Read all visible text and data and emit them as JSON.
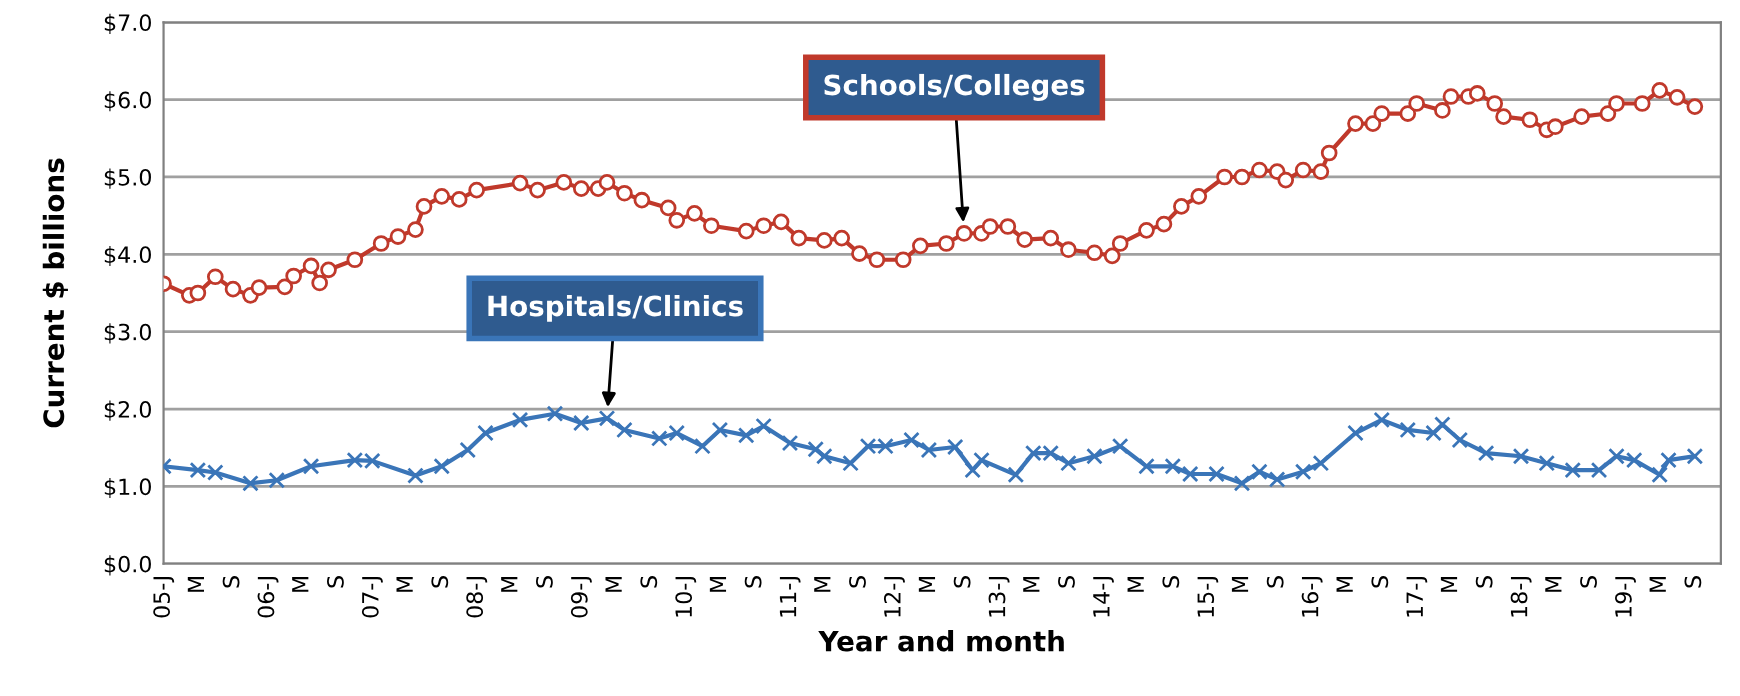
{
  "chart_data": {
    "type": "line",
    "xlabel": "Year and month",
    "ylabel": "Current $ billions",
    "series": [
      {
        "name": "Schools/Colleges",
        "color": "#c0392b",
        "marker": "circle",
        "x": [
          "2005-01",
          "2005-04",
          "2005-05",
          "2005-07",
          "2005-09",
          "2005-11",
          "2005-12",
          "2006-03",
          "2006-04",
          "2006-06",
          "2006-07",
          "2006-08",
          "2006-11",
          "2007-02",
          "2007-04",
          "2007-06",
          "2007-07",
          "2007-09",
          "2007-11",
          "2008-01",
          "2008-06",
          "2008-08",
          "2008-11",
          "2009-01",
          "2009-03",
          "2009-04",
          "2009-06",
          "2009-08",
          "2009-11",
          "2009-12",
          "2010-02",
          "2010-04",
          "2010-08",
          "2010-10",
          "2010-12",
          "2011-02",
          "2011-05",
          "2011-07",
          "2011-09",
          "2011-11",
          "2012-02",
          "2012-04",
          "2012-07",
          "2012-09",
          "2012-11",
          "2012-12",
          "2013-02",
          "2013-04",
          "2013-07",
          "2013-09",
          "2013-12",
          "2014-02",
          "2014-03",
          "2014-06",
          "2014-08",
          "2014-10",
          "2014-12",
          "2015-03",
          "2015-05",
          "2015-07",
          "2015-09",
          "2015-10",
          "2015-12",
          "2016-02",
          "2016-03",
          "2016-06",
          "2016-08",
          "2016-09",
          "2016-12",
          "2017-01",
          "2017-04",
          "2017-05",
          "2017-07",
          "2017-08",
          "2017-10",
          "2017-11",
          "2018-02",
          "2018-04",
          "2018-05",
          "2018-08",
          "2018-11",
          "2018-12",
          "2019-03",
          "2019-05",
          "2019-07",
          "2019-09"
        ],
        "values": [
          3.62,
          3.47,
          3.5,
          3.71,
          3.55,
          3.47,
          3.57,
          3.58,
          3.72,
          3.85,
          3.63,
          3.8,
          3.93,
          4.14,
          4.23,
          4.32,
          4.62,
          4.75,
          4.71,
          4.83,
          4.92,
          4.83,
          4.93,
          4.85,
          4.85,
          4.93,
          4.79,
          4.7,
          4.6,
          4.44,
          4.53,
          4.37,
          4.3,
          4.37,
          4.42,
          4.21,
          4.18,
          4.21,
          4.01,
          3.93,
          3.93,
          4.11,
          4.14,
          4.27,
          4.27,
          4.36,
          4.36,
          4.19,
          4.21,
          4.06,
          4.02,
          3.98,
          4.14,
          4.31,
          4.39,
          4.62,
          4.75,
          5.0,
          5.0,
          5.09,
          5.07,
          4.96,
          5.09,
          5.07,
          5.31,
          5.69,
          5.69,
          5.82,
          5.82,
          5.95,
          5.86,
          6.04,
          6.04,
          6.08,
          5.95,
          5.78,
          5.74,
          5.61,
          5.65,
          5.78,
          5.82,
          5.95,
          5.95,
          6.12,
          6.03,
          5.91
        ]
      },
      {
        "name": "Hospitals/Clinics",
        "color": "#3a75b8",
        "marker": "cross",
        "x": [
          "2005-01",
          "2005-05",
          "2005-07",
          "2005-11",
          "2006-02",
          "2006-06",
          "2006-11",
          "2007-01",
          "2007-06",
          "2007-09",
          "2007-12",
          "2008-02",
          "2008-06",
          "2008-10",
          "2009-01",
          "2009-04",
          "2009-06",
          "2009-10",
          "2009-12",
          "2010-03",
          "2010-05",
          "2010-08",
          "2010-10",
          "2011-01",
          "2011-04",
          "2011-05",
          "2011-08",
          "2011-10",
          "2011-12",
          "2012-03",
          "2012-05",
          "2012-08",
          "2012-10",
          "2012-11",
          "2013-03",
          "2013-05",
          "2013-07",
          "2013-09",
          "2013-12",
          "2014-03",
          "2014-06",
          "2014-09",
          "2014-11",
          "2015-02",
          "2015-05",
          "2015-07",
          "2015-09",
          "2015-12",
          "2016-02",
          "2016-06",
          "2016-09",
          "2016-12",
          "2017-03",
          "2017-04",
          "2017-06",
          "2017-09",
          "2018-01",
          "2018-04",
          "2018-07",
          "2018-10",
          "2018-12",
          "2019-02",
          "2019-05",
          "2019-06",
          "2019-09"
        ],
        "values": [
          1.26,
          1.21,
          1.18,
          1.04,
          1.08,
          1.26,
          1.34,
          1.33,
          1.14,
          1.26,
          1.47,
          1.69,
          1.86,
          1.94,
          1.82,
          1.88,
          1.73,
          1.62,
          1.69,
          1.52,
          1.73,
          1.66,
          1.78,
          1.56,
          1.48,
          1.39,
          1.3,
          1.52,
          1.52,
          1.6,
          1.47,
          1.51,
          1.21,
          1.34,
          1.15,
          1.43,
          1.43,
          1.3,
          1.39,
          1.52,
          1.26,
          1.26,
          1.16,
          1.16,
          1.04,
          1.19,
          1.09,
          1.19,
          1.3,
          1.69,
          1.86,
          1.73,
          1.69,
          1.8,
          1.6,
          1.43,
          1.39,
          1.3,
          1.21,
          1.21,
          1.39,
          1.34,
          1.15,
          1.34,
          1.39
        ]
      }
    ],
    "xlim": [
      "2005-01",
      "2019-12"
    ],
    "xticks": [
      {
        "value": "2005-01",
        "label": "05-J"
      },
      {
        "value": "2005-05",
        "label": "M"
      },
      {
        "value": "2005-09",
        "label": "S"
      },
      {
        "value": "2006-01",
        "label": "06-J"
      },
      {
        "value": "2006-05",
        "label": "M"
      },
      {
        "value": "2006-09",
        "label": "S"
      },
      {
        "value": "2007-01",
        "label": "07-J"
      },
      {
        "value": "2007-05",
        "label": "M"
      },
      {
        "value": "2007-09",
        "label": "S"
      },
      {
        "value": "2008-01",
        "label": "08-J"
      },
      {
        "value": "2008-05",
        "label": "M"
      },
      {
        "value": "2008-09",
        "label": "S"
      },
      {
        "value": "2009-01",
        "label": "09-J"
      },
      {
        "value": "2009-05",
        "label": "M"
      },
      {
        "value": "2009-09",
        "label": "S"
      },
      {
        "value": "2010-01",
        "label": "10-J"
      },
      {
        "value": "2010-05",
        "label": "M"
      },
      {
        "value": "2010-09",
        "label": "S"
      },
      {
        "value": "2011-01",
        "label": "11-J"
      },
      {
        "value": "2011-05",
        "label": "M"
      },
      {
        "value": "2011-09",
        "label": "S"
      },
      {
        "value": "2012-01",
        "label": "12-J"
      },
      {
        "value": "2012-05",
        "label": "M"
      },
      {
        "value": "2012-09",
        "label": "S"
      },
      {
        "value": "2013-01",
        "label": "13-J"
      },
      {
        "value": "2013-05",
        "label": "M"
      },
      {
        "value": "2013-09",
        "label": "S"
      },
      {
        "value": "2014-01",
        "label": "14-J"
      },
      {
        "value": "2014-05",
        "label": "M"
      },
      {
        "value": "2014-09",
        "label": "S"
      },
      {
        "value": "2015-01",
        "label": "15-J"
      },
      {
        "value": "2015-05",
        "label": "M"
      },
      {
        "value": "2015-09",
        "label": "S"
      },
      {
        "value": "2016-01",
        "label": "16-J"
      },
      {
        "value": "2016-05",
        "label": "M"
      },
      {
        "value": "2016-09",
        "label": "S"
      },
      {
        "value": "2017-01",
        "label": "17-J"
      },
      {
        "value": "2017-05",
        "label": "M"
      },
      {
        "value": "2017-09",
        "label": "S"
      },
      {
        "value": "2018-01",
        "label": "18-J"
      },
      {
        "value": "2018-05",
        "label": "M"
      },
      {
        "value": "2018-09",
        "label": "S"
      },
      {
        "value": "2019-01",
        "label": "19-J"
      },
      {
        "value": "2019-05",
        "label": "M"
      },
      {
        "value": "2019-09",
        "label": "S"
      }
    ],
    "ylim": [
      0,
      7
    ],
    "yticks": [
      {
        "value": 0,
        "label": "$0.0"
      },
      {
        "value": 1,
        "label": "$1.0"
      },
      {
        "value": 2,
        "label": "$2.0"
      },
      {
        "value": 3,
        "label": "$3.0"
      },
      {
        "value": 4,
        "label": "$4.0"
      },
      {
        "value": 5,
        "label": "$5.0"
      },
      {
        "value": 6,
        "label": "$6.0"
      },
      {
        "value": 7,
        "label": "$7.0"
      }
    ],
    "grid": "y"
  }
}
